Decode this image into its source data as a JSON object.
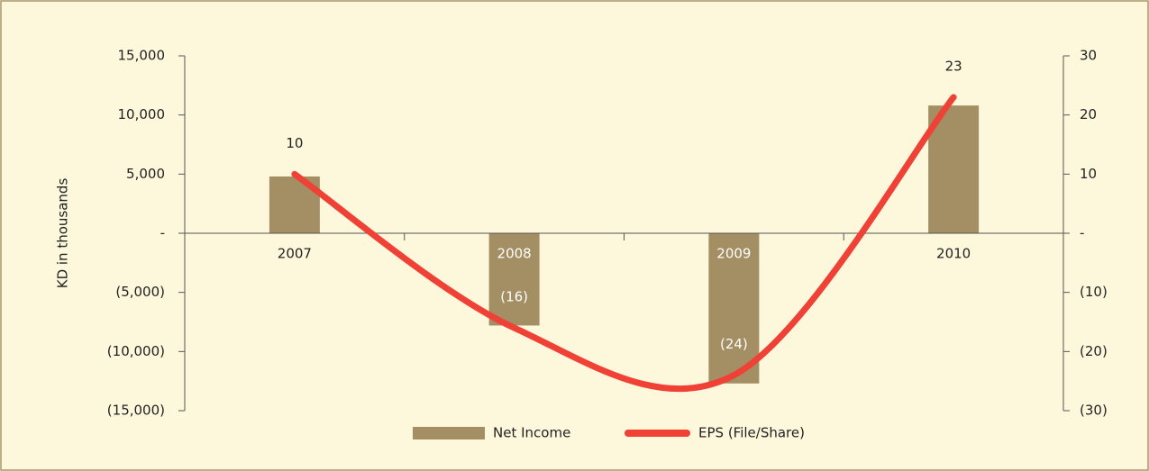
{
  "chart_data": {
    "type": "bar_line",
    "ylabel": "KD in thousands",
    "categories": [
      "2007",
      "2008",
      "2009",
      "2010"
    ],
    "series": [
      {
        "name": "Net Income",
        "type": "bar",
        "color": "#a38f63",
        "values": [
          4800,
          -7800,
          -12700,
          10800
        ]
      },
      {
        "name": "EPS (File/Share)",
        "type": "line",
        "color": "#ef4136",
        "axis": "y2",
        "values": [
          10,
          -16,
          -24,
          23
        ],
        "value_labels": [
          "10",
          "(16)",
          "(24)",
          "23"
        ]
      }
    ],
    "ylim": [
      -15000,
      15000
    ],
    "yticks": [
      {
        "value": -15000,
        "label": "(15,000)"
      },
      {
        "value": -10000,
        "label": "(10,000)"
      },
      {
        "value": -5000,
        "label": "(5,000)"
      },
      {
        "value": 0,
        "label": "-"
      },
      {
        "value": 5000,
        "label": "5,000"
      },
      {
        "value": 10000,
        "label": "10,000"
      },
      {
        "value": 15000,
        "label": "15,000"
      }
    ],
    "y2lim": [
      -30,
      30
    ],
    "y2ticks": [
      {
        "value": -30,
        "label": "(30)"
      },
      {
        "value": -20,
        "label": "(20)"
      },
      {
        "value": -10,
        "label": "(10)"
      },
      {
        "value": 0,
        "label": "-"
      },
      10,
      20,
      30
    ],
    "legend": "bottom"
  }
}
